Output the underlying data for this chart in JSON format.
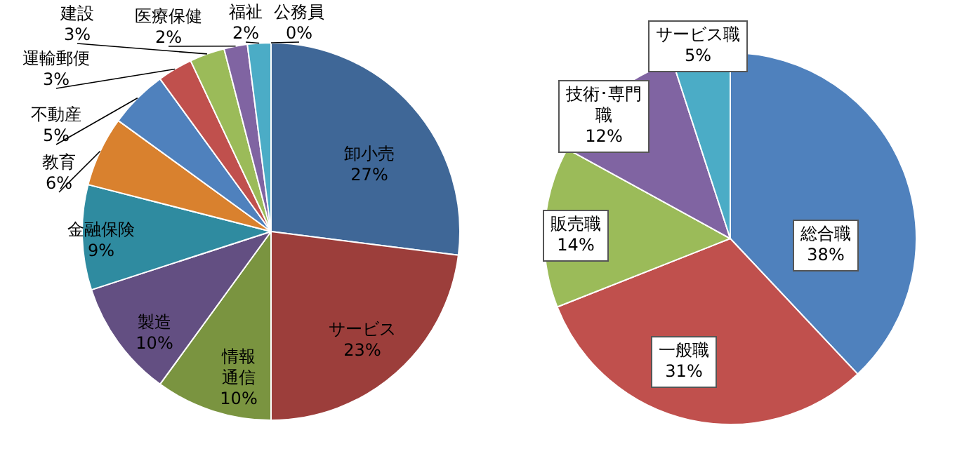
{
  "chart_data": [
    {
      "type": "pie",
      "categories": [
        "卸小売",
        "サービス",
        "情報通信",
        "製造",
        "金融保険",
        "教育",
        "不動産",
        "運輸郵便",
        "建設",
        "医療保健",
        "福祉",
        "公務員"
      ],
      "values": [
        27,
        23,
        10,
        10,
        9,
        6,
        5,
        3,
        3,
        2,
        2,
        0
      ],
      "value_labels": [
        "27%",
        "23%",
        "10%",
        "10%",
        "9%",
        "6%",
        "5%",
        "3%",
        "3%",
        "2%",
        "2%",
        "0%"
      ],
      "colors": [
        "#3f6797",
        "#9c3e3b",
        "#7a9440",
        "#634f82",
        "#2f8ba0",
        "#d9812e",
        "#4f81bd",
        "#c0504d",
        "#9bbb59",
        "#8064a2",
        "#4bacc6",
        "#f79646"
      ],
      "legend": false
    },
    {
      "type": "pie",
      "categories": [
        "総合職",
        "一般職",
        "販売職",
        "技術･専門職",
        "サービス職"
      ],
      "values": [
        38,
        31,
        14,
        12,
        5
      ],
      "value_labels": [
        "38%",
        "31%",
        "14%",
        "12%",
        "5%"
      ],
      "colors": [
        "#4f81bd",
        "#c0504d",
        "#9bbb59",
        "#8064a2",
        "#4bacc6"
      ],
      "legend": false
    }
  ]
}
